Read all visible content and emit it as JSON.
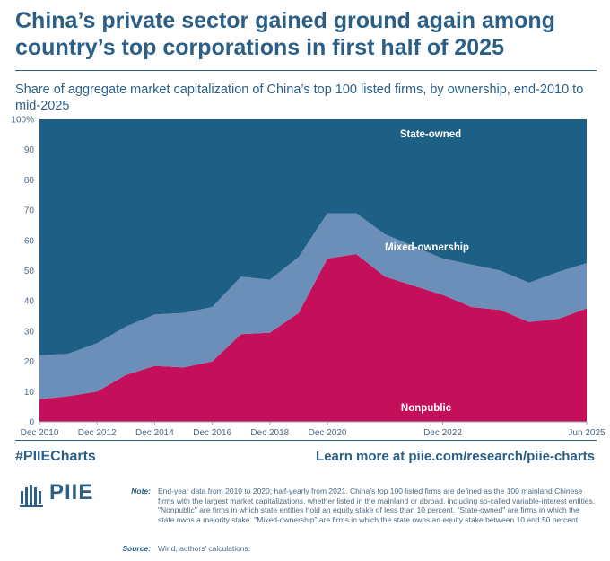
{
  "header": {
    "title": "China’s private sector gained ground again among country’s top corporations in first half of 2025",
    "subtitle": "Share of aggregate market capitalization of China’s top 100 listed firms, by ownership, end-2010 to mid-2025"
  },
  "chart_data": {
    "type": "area",
    "stacked": true,
    "x": [
      "Dec 2010",
      "Dec 2011",
      "Dec 2012",
      "Dec 2013",
      "Dec 2014",
      "Dec 2015",
      "Dec 2016",
      "Dec 2017",
      "Dec 2018",
      "Dec 2019",
      "Dec 2020",
      "Jun 2021",
      "Dec 2021",
      "Jun 2022",
      "Dec 2022",
      "Jun 2023",
      "Dec 2023",
      "Jun 2024",
      "Dec 2024",
      "Jun 2025"
    ],
    "series": [
      {
        "name": "Nonpublic",
        "color": "#c4105a",
        "values": [
          7.5,
          8.5,
          10,
          15.5,
          18.5,
          18,
          20,
          29,
          29.5,
          36,
          54,
          55.5,
          48,
          45,
          42,
          38,
          37,
          33,
          34,
          37.5
        ]
      },
      {
        "name": "Mixed-ownership",
        "color": "#6b8fb8",
        "values": [
          14.5,
          14,
          16,
          16,
          17,
          18,
          18,
          19,
          17.5,
          18.5,
          15,
          13.5,
          14,
          13,
          12,
          14,
          13,
          13,
          15.5,
          15
        ]
      },
      {
        "name": "State-owned",
        "color": "#1e5f85",
        "values": [
          78,
          77.5,
          74,
          68.5,
          64.5,
          64,
          62,
          52,
          53,
          45.5,
          31,
          31,
          38,
          42,
          46,
          48,
          50,
          54,
          50.5,
          47.5
        ]
      }
    ],
    "x_tick_labels": [
      "Dec 2010",
      "Dec 2012",
      "Dec 2014",
      "Dec 2016",
      "Dec 2018",
      "Dec 2020",
      "Dec 2022",
      "Jun 2025"
    ],
    "y_ticks": [
      "0",
      "10",
      "20",
      "30",
      "40",
      "50",
      "60",
      "70",
      "80",
      "90",
      "100%"
    ],
    "ylim": [
      0,
      100
    ],
    "grid": false,
    "annotations": {
      "state_owned": "State-owned",
      "mixed_ownership": "Mixed-ownership",
      "nonpublic": "Nonpublic"
    }
  },
  "footer": {
    "hashtag": "#PIIECharts",
    "link": "Learn more at piie.com/research/piie-charts",
    "logo_text": "PIIE",
    "note_label": "Note:",
    "note_text": "End-year data from 2010 to 2020; half-yearly from 2021. China’s top 100 listed firms are defined as the 100 mainland Chinese firms with the largest market capitalizations, whether listed in the mainland or abroad, including so-called variable-interest entities. \"Nonpublic\" are firms in which state entities hold an equity stake of less than 10 percent. \"State-owned\" are firms in which the state owns a majority stake. \"Mixed-ownership\" are firms in which the state owns an equity stake between 10 and 50 percent.",
    "source_label": "Source:",
    "source_text": "Wind, authors’ calculations."
  }
}
